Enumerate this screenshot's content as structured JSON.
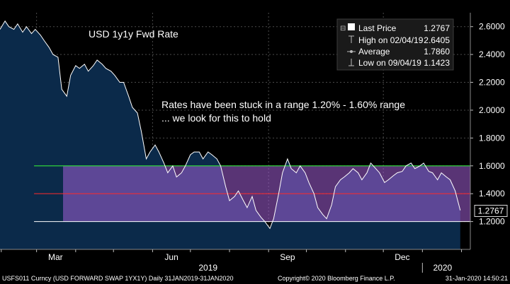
{
  "chart_data": {
    "type": "line",
    "title": "USD 1y1y Fwd Rate",
    "annotation": [
      "Rates have been stuck in a range 1.20% - 1.60% range",
      "... we look for this to hold"
    ],
    "y_ticks": [
      "1.2000",
      "1.4000",
      "1.6000",
      "1.8000",
      "2.0000",
      "2.2000",
      "2.4000",
      "2.6000"
    ],
    "ylim": [
      1.0,
      2.7
    ],
    "x_tick_labels": [
      "Mar",
      "Jun",
      "Sep",
      "Dec"
    ],
    "year_labels": [
      "2019",
      "2020"
    ],
    "range_band": {
      "low": 1.2,
      "high": 1.6,
      "mid": 1.4
    },
    "last_value_label": "1.2767",
    "legend": [
      {
        "label": "Last Price",
        "value": "1.2767",
        "marker": "square"
      },
      {
        "label": "High on 02/04/19",
        "value": "2.6405",
        "marker": "high"
      },
      {
        "label": "Average",
        "value": "1.7860",
        "marker": "avg"
      },
      {
        "label": "Low on 09/04/19",
        "value": "1.1423",
        "marker": "low"
      }
    ],
    "series": [
      {
        "x": [
          "2019-01-31",
          "2019-02-04",
          "2019-02-07",
          "2019-02-11",
          "2019-02-14",
          "2019-02-18",
          "2019-02-21",
          "2019-02-25",
          "2019-02-28",
          "2019-03-04",
          "2019-03-07",
          "2019-03-11",
          "2019-03-14",
          "2019-03-18",
          "2019-03-21",
          "2019-03-25",
          "2019-03-28",
          "2019-04-01",
          "2019-04-04",
          "2019-04-08",
          "2019-04-11",
          "2019-04-15",
          "2019-04-18",
          "2019-04-22",
          "2019-04-25",
          "2019-04-29",
          "2019-05-02",
          "2019-05-06",
          "2019-05-09",
          "2019-05-13",
          "2019-05-16",
          "2019-05-20",
          "2019-05-23",
          "2019-05-27",
          "2019-05-30",
          "2019-06-03",
          "2019-06-06",
          "2019-06-10",
          "2019-06-13",
          "2019-06-17",
          "2019-06-20",
          "2019-06-24",
          "2019-06-27",
          "2019-07-01",
          "2019-07-04",
          "2019-07-08",
          "2019-07-11",
          "2019-07-15",
          "2019-07-18",
          "2019-07-22",
          "2019-07-25",
          "2019-07-29",
          "2019-08-01",
          "2019-08-05",
          "2019-08-08",
          "2019-08-12",
          "2019-08-15",
          "2019-08-19",
          "2019-08-22",
          "2019-08-26",
          "2019-08-29",
          "2019-09-02",
          "2019-09-05",
          "2019-09-09",
          "2019-09-12",
          "2019-09-16",
          "2019-09-19",
          "2019-09-23",
          "2019-09-26",
          "2019-09-30",
          "2019-10-03",
          "2019-10-07",
          "2019-10-10",
          "2019-10-14",
          "2019-10-17",
          "2019-10-21",
          "2019-10-24",
          "2019-10-28",
          "2019-10-31",
          "2019-11-04",
          "2019-11-07",
          "2019-11-11",
          "2019-11-14",
          "2019-11-18",
          "2019-11-21",
          "2019-11-25",
          "2019-11-28",
          "2019-12-02",
          "2019-12-05",
          "2019-12-09",
          "2019-12-12",
          "2019-12-16",
          "2019-12-19",
          "2019-12-23",
          "2019-12-26",
          "2019-12-30",
          "2020-01-02",
          "2020-01-06",
          "2020-01-09",
          "2020-01-13",
          "2020-01-16",
          "2020-01-20",
          "2020-01-23",
          "2020-01-27",
          "2020-01-31"
        ],
        "values": [
          2.58,
          2.64,
          2.6,
          2.58,
          2.62,
          2.56,
          2.6,
          2.55,
          2.58,
          2.54,
          2.5,
          2.45,
          2.4,
          2.38,
          2.15,
          2.1,
          2.25,
          2.32,
          2.3,
          2.33,
          2.28,
          2.32,
          2.36,
          2.33,
          2.3,
          2.28,
          2.25,
          2.2,
          2.2,
          2.1,
          2.02,
          1.98,
          1.85,
          1.65,
          1.7,
          1.75,
          1.7,
          1.62,
          1.55,
          1.6,
          1.52,
          1.55,
          1.6,
          1.68,
          1.7,
          1.7,
          1.65,
          1.7,
          1.68,
          1.65,
          1.6,
          1.45,
          1.35,
          1.38,
          1.42,
          1.35,
          1.3,
          1.38,
          1.28,
          1.23,
          1.2,
          1.15,
          1.22,
          1.4,
          1.55,
          1.65,
          1.58,
          1.55,
          1.6,
          1.55,
          1.48,
          1.4,
          1.3,
          1.25,
          1.22,
          1.32,
          1.45,
          1.5,
          1.52,
          1.55,
          1.58,
          1.55,
          1.5,
          1.55,
          1.62,
          1.58,
          1.55,
          1.48,
          1.5,
          1.53,
          1.55,
          1.56,
          1.6,
          1.62,
          1.58,
          1.6,
          1.62,
          1.56,
          1.55,
          1.5,
          1.55,
          1.52,
          1.5,
          1.42,
          1.28
        ]
      }
    ],
    "colors": {
      "area": "#0b2a4a",
      "line": "#ffffff",
      "band_fill": "#a35fd6",
      "band_top": "#2fd13a",
      "band_mid": "#ff2a2a",
      "band_bottom": "#ffffff",
      "grid": "#4a4a4a",
      "axis_text": "#ffffff"
    }
  },
  "footer": {
    "left": "USFS011 Curncy (USD FORWARD SWAP  1YX1Y)  Daily 31JAN2019-31JAN2020",
    "center": "Copyright© 2020 Bloomberg Finance L.P.",
    "right": "31-Jan-2020 14:50:21"
  }
}
